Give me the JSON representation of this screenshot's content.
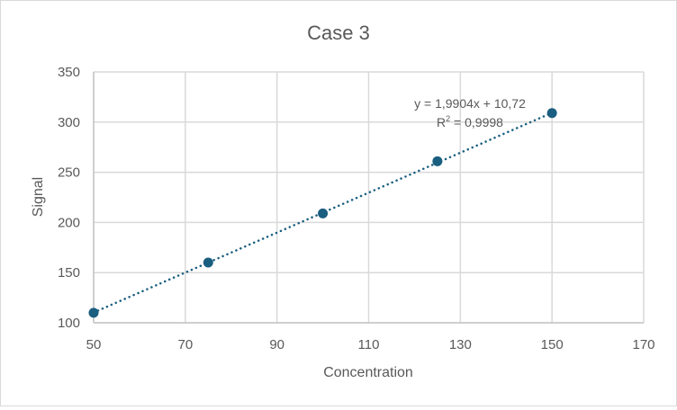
{
  "chart_data": {
    "type": "scatter",
    "title": "Case 3",
    "xlabel": "Concentration",
    "ylabel": "Signal",
    "xlim": [
      50,
      170
    ],
    "ylim": [
      100,
      350
    ],
    "xticks": [
      50,
      70,
      90,
      110,
      130,
      150,
      170
    ],
    "yticks": [
      100,
      150,
      200,
      250,
      300,
      350
    ],
    "grid": true,
    "legend": null,
    "series": [
      {
        "name": "Signal",
        "x": [
          50,
          75,
          100,
          125,
          150
        ],
        "y": [
          110,
          160,
          209,
          261,
          309
        ],
        "marker_color": "#1a5e80"
      }
    ],
    "trendline": {
      "type": "linear",
      "style": "dotted",
      "color": "#1a5e80",
      "slope": 1.9904,
      "intercept": 10.72,
      "equation_label": "y = 1,9904x + 10,72",
      "r2_label_prefix": "R",
      "r2_label_sup": "2",
      "r2_label_value": " = 0,9998"
    }
  },
  "colors": {
    "gridline": "#d9d9d9",
    "axis": "#bfbfbf",
    "text": "#595959",
    "marker": "#1a5e80"
  }
}
